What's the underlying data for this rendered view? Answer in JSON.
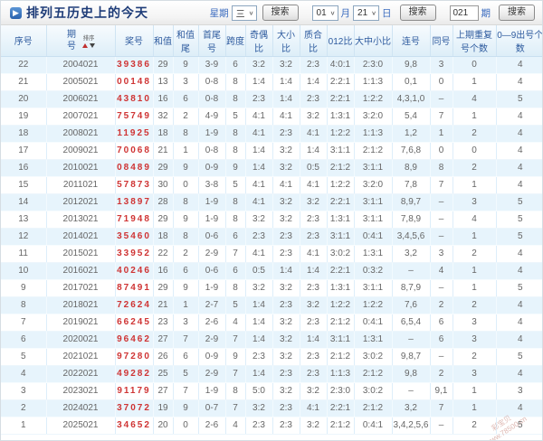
{
  "page": {
    "title": "排列五历史上的今天",
    "title_icon": "play-arrow",
    "watermark_line1": "彩宝贝",
    "watermark_line2": "www.78500.cn"
  },
  "controls": {
    "week_label": "星期",
    "week_value": "三",
    "month_value": "01",
    "month_label": "月",
    "day_value": "21",
    "day_label": "日",
    "issue_value": "021",
    "issue_label": "期",
    "search_label": "搜索",
    "dropdown_arrow": "∨"
  },
  "table": {
    "sort_label": "排序",
    "headers": [
      "序号",
      "期号",
      "奖号",
      "和值",
      "和值尾",
      "首尾号",
      "跨度",
      "奇偶比",
      "大小比",
      "质合比",
      "012比",
      "大中小比",
      "连号",
      "同号",
      "上期重复号个数",
      "0—9出号个数"
    ],
    "header_keys": [
      "xuhao",
      "qihao",
      "jianghao",
      "hezhi",
      "hezhiwei",
      "shouweihao",
      "kuadu",
      "jioubi",
      "daxiaobi",
      "zhihebi",
      "012bi",
      "dazhongxiaobi",
      "lianhao",
      "tonghao",
      "shangqichongfu",
      "chuhaogeshu"
    ],
    "rows": [
      [
        "22",
        "2004021",
        "39386",
        "29",
        "9",
        "3-9",
        "6",
        "3:2",
        "3:2",
        "2:3",
        "4:0:1",
        "2:3:0",
        "9,8",
        "3",
        "0",
        "4"
      ],
      [
        "21",
        "2005021",
        "00148",
        "13",
        "3",
        "0-8",
        "8",
        "1:4",
        "1:4",
        "1:4",
        "2:2:1",
        "1:1:3",
        "0,1",
        "0",
        "1",
        "4"
      ],
      [
        "20",
        "2006021",
        "43810",
        "16",
        "6",
        "0-8",
        "8",
        "2:3",
        "1:4",
        "2:3",
        "2:2:1",
        "1:2:2",
        "4,3,1,0",
        "–",
        "4",
        "5"
      ],
      [
        "19",
        "2007021",
        "75749",
        "32",
        "2",
        "4-9",
        "5",
        "4:1",
        "4:1",
        "3:2",
        "1:3:1",
        "3:2:0",
        "5,4",
        "7",
        "1",
        "4"
      ],
      [
        "18",
        "2008021",
        "11925",
        "18",
        "8",
        "1-9",
        "8",
        "4:1",
        "2:3",
        "4:1",
        "1:2:2",
        "1:1:3",
        "1,2",
        "1",
        "2",
        "4"
      ],
      [
        "17",
        "2009021",
        "70068",
        "21",
        "1",
        "0-8",
        "8",
        "1:4",
        "3:2",
        "1:4",
        "3:1:1",
        "2:1:2",
        "7,6,8",
        "0",
        "0",
        "4"
      ],
      [
        "16",
        "2010021",
        "08489",
        "29",
        "9",
        "0-9",
        "9",
        "1:4",
        "3:2",
        "0:5",
        "2:1:2",
        "3:1:1",
        "8,9",
        "8",
        "2",
        "4"
      ],
      [
        "15",
        "2011021",
        "57873",
        "30",
        "0",
        "3-8",
        "5",
        "4:1",
        "4:1",
        "4:1",
        "1:2:2",
        "3:2:0",
        "7,8",
        "7",
        "1",
        "4"
      ],
      [
        "14",
        "2012021",
        "13897",
        "28",
        "8",
        "1-9",
        "8",
        "4:1",
        "3:2",
        "3:2",
        "2:2:1",
        "3:1:1",
        "8,9,7",
        "–",
        "3",
        "5"
      ],
      [
        "13",
        "2013021",
        "71948",
        "29",
        "9",
        "1-9",
        "8",
        "3:2",
        "3:2",
        "2:3",
        "1:3:1",
        "3:1:1",
        "7,8,9",
        "–",
        "4",
        "5"
      ],
      [
        "12",
        "2014021",
        "35460",
        "18",
        "8",
        "0-6",
        "6",
        "2:3",
        "2:3",
        "2:3",
        "3:1:1",
        "0:4:1",
        "3,4,5,6",
        "–",
        "1",
        "5"
      ],
      [
        "11",
        "2015021",
        "33952",
        "22",
        "2",
        "2-9",
        "7",
        "4:1",
        "2:3",
        "4:1",
        "3:0:2",
        "1:3:1",
        "3,2",
        "3",
        "2",
        "4"
      ],
      [
        "10",
        "2016021",
        "40246",
        "16",
        "6",
        "0-6",
        "6",
        "0:5",
        "1:4",
        "1:4",
        "2:2:1",
        "0:3:2",
        "–",
        "4",
        "1",
        "4"
      ],
      [
        "9",
        "2017021",
        "87491",
        "29",
        "9",
        "1-9",
        "8",
        "3:2",
        "3:2",
        "2:3",
        "1:3:1",
        "3:1:1",
        "8,7,9",
        "–",
        "1",
        "5"
      ],
      [
        "8",
        "2018021",
        "72624",
        "21",
        "1",
        "2-7",
        "5",
        "1:4",
        "2:3",
        "3:2",
        "1:2:2",
        "1:2:2",
        "7,6",
        "2",
        "2",
        "4"
      ],
      [
        "7",
        "2019021",
        "66245",
        "23",
        "3",
        "2-6",
        "4",
        "1:4",
        "3:2",
        "2:3",
        "2:1:2",
        "0:4:1",
        "6,5,4",
        "6",
        "3",
        "4"
      ],
      [
        "6",
        "2020021",
        "96462",
        "27",
        "7",
        "2-9",
        "7",
        "1:4",
        "3:2",
        "1:4",
        "3:1:1",
        "1:3:1",
        "–",
        "6",
        "3",
        "4"
      ],
      [
        "5",
        "2021021",
        "97280",
        "26",
        "6",
        "0-9",
        "9",
        "2:3",
        "3:2",
        "2:3",
        "2:1:2",
        "3:0:2",
        "9,8,7",
        "–",
        "2",
        "5"
      ],
      [
        "4",
        "2022021",
        "49282",
        "25",
        "5",
        "2-9",
        "7",
        "1:4",
        "2:3",
        "2:3",
        "1:1:3",
        "2:1:2",
        "9,8",
        "2",
        "3",
        "4"
      ],
      [
        "3",
        "2023021",
        "91179",
        "27",
        "7",
        "1-9",
        "8",
        "5:0",
        "3:2",
        "3:2",
        "2:3:0",
        "3:0:2",
        "–",
        "9,1",
        "1",
        "3"
      ],
      [
        "2",
        "2024021",
        "37072",
        "19",
        "9",
        "0-7",
        "7",
        "3:2",
        "2:3",
        "4:1",
        "2:2:1",
        "2:1:2",
        "3,2",
        "7",
        "1",
        "4"
      ],
      [
        "1",
        "2025021",
        "34652",
        "20",
        "0",
        "2-6",
        "4",
        "2:3",
        "2:3",
        "3:2",
        "2:1:2",
        "0:4:1",
        "3,4,2,5,6",
        "–",
        "2",
        "5"
      ]
    ]
  },
  "colors": {
    "prize_red": "#cf3434",
    "header_blue": "#2d5a9e",
    "row_alt_blue": "#e7f4fc",
    "title_navy": "#1e3c78"
  }
}
